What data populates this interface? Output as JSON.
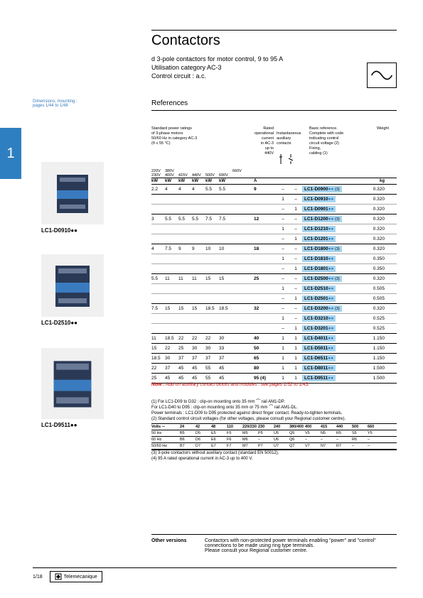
{
  "title": "Contactors",
  "sub1": "d 3-pole contactors for motor control, 9 to 95 A",
  "sub2": "Utilisation category AC-3",
  "sub3": "Control circuit : a.c.",
  "refs": "References",
  "dim_note_1": "Dimensions, mounting :",
  "dim_note_2": "pages 1/44 to 1/48",
  "side_tab": "1",
  "products": [
    {
      "caption": "LC1-D0910●●"
    },
    {
      "caption": "LC1-D2510●●"
    },
    {
      "caption": "LC1-D9511●●"
    }
  ],
  "hdr": {
    "power": "Standard power ratings\nof 3-phase motors\n50/60 Hz in category AC-3\n(θ ≤ 55 °C)",
    "rated": "Rated\noperational\ncurrent\nin AC-3\nup to\n440V",
    "aux": "Instantaneous\nauxiliary\ncontacts",
    "basic": "Basic reference.\nComplete with code\nindicating control\ncircuit voltage (2)\nFixing,\ncabling (1)",
    "weight": "Weight"
  },
  "vhdr": {
    "r1": [
      "220V",
      "380V",
      "",
      "",
      "",
      "",
      "660V"
    ],
    "r2": [
      "230V",
      "400V",
      "415V",
      "440V",
      "500V",
      "690V",
      ""
    ]
  },
  "kwrow": [
    "kW",
    "kW",
    "kW",
    "kW",
    "kW",
    "kW",
    "",
    "A",
    "",
    "",
    "",
    "kg"
  ],
  "rows": [
    {
      "kw": [
        "2.2",
        "4",
        "4",
        "4",
        "5.5",
        "5.5"
      ],
      "c660": "",
      "amp": "9",
      "aux1": "–",
      "aux2": "–",
      "ref": "LC1-D0900",
      "sfx": "(3)",
      "wt": "0.320",
      "major": true
    },
    {
      "kw": [
        "",
        "",
        "",
        "",
        "",
        ""
      ],
      "c660": "",
      "amp": "",
      "aux1": "1",
      "aux2": "–",
      "ref": "LC1-D0910",
      "sfx": "",
      "wt": "0.320"
    },
    {
      "kw": [
        "",
        "",
        "",
        "",
        "",
        ""
      ],
      "c660": "",
      "amp": "",
      "aux1": "–",
      "aux2": "1",
      "ref": "LC1-D0901",
      "sfx": "",
      "wt": "0.320",
      "major": true
    },
    {
      "kw": [
        "3",
        "5.5",
        "5.5",
        "5.5",
        "7.5",
        "7.5"
      ],
      "c660": "",
      "amp": "12",
      "aux1": "–",
      "aux2": "–",
      "ref": "LC1-D1200",
      "sfx": "(3)",
      "wt": "0.320"
    },
    {
      "kw": [
        "",
        "",
        "",
        "",
        "",
        ""
      ],
      "c660": "",
      "amp": "",
      "aux1": "1",
      "aux2": "–",
      "ref": "LC1-D1210",
      "sfx": "",
      "wt": "0.320"
    },
    {
      "kw": [
        "",
        "",
        "",
        "",
        "",
        ""
      ],
      "c660": "",
      "amp": "",
      "aux1": "–",
      "aux2": "1",
      "ref": "LC1-D1201",
      "sfx": "",
      "wt": "0.320",
      "major": true
    },
    {
      "kw": [
        "4",
        "7.5",
        "9",
        "9",
        "10",
        "10"
      ],
      "c660": "",
      "amp": "18",
      "aux1": "–",
      "aux2": "–",
      "ref": "LC1-D1800",
      "sfx": "(3)",
      "wt": "0.320"
    },
    {
      "kw": [
        "",
        "",
        "",
        "",
        "",
        ""
      ],
      "c660": "",
      "amp": "",
      "aux1": "1",
      "aux2": "–",
      "ref": "LC1-D1810",
      "sfx": "",
      "wt": "0.350"
    },
    {
      "kw": [
        "",
        "",
        "",
        "",
        "",
        ""
      ],
      "c660": "",
      "amp": "",
      "aux1": "–",
      "aux2": "1",
      "ref": "LC1-D1801",
      "sfx": "",
      "wt": "0.350",
      "major": true
    },
    {
      "kw": [
        "5.5",
        "11",
        "11",
        "11",
        "15",
        "15"
      ],
      "c660": "",
      "amp": "25",
      "aux1": "–",
      "aux2": "–",
      "ref": "LC1-D2500",
      "sfx": "(3)",
      "wt": "0.320"
    },
    {
      "kw": [
        "",
        "",
        "",
        "",
        "",
        ""
      ],
      "c660": "",
      "amp": "",
      "aux1": "1",
      "aux2": "–",
      "ref": "LC1-D2510",
      "sfx": "",
      "wt": "0.505"
    },
    {
      "kw": [
        "",
        "",
        "",
        "",
        "",
        ""
      ],
      "c660": "",
      "amp": "",
      "aux1": "–",
      "aux2": "1",
      "ref": "LC1-D2501",
      "sfx": "",
      "wt": "0.505",
      "major": true
    },
    {
      "kw": [
        "7.5",
        "15",
        "15",
        "15",
        "18.5",
        "18.5"
      ],
      "c660": "",
      "amp": "32",
      "aux1": "–",
      "aux2": "–",
      "ref": "LC1-D3200",
      "sfx": "(3)",
      "wt": "0.320"
    },
    {
      "kw": [
        "",
        "",
        "",
        "",
        "",
        ""
      ],
      "c660": "",
      "amp": "",
      "aux1": "1",
      "aux2": "–",
      "ref": "LC1-D3210",
      "sfx": "",
      "wt": "0.525"
    },
    {
      "kw": [
        "",
        "",
        "",
        "",
        "",
        ""
      ],
      "c660": "",
      "amp": "",
      "aux1": "–",
      "aux2": "1",
      "ref": "LC1-D3201",
      "sfx": "",
      "wt": "0.525",
      "major": true
    },
    {
      "kw": [
        "11",
        "18.5",
        "22",
        "22",
        "22",
        "30"
      ],
      "c660": "",
      "amp": "40",
      "aux1": "1",
      "aux2": "1",
      "ref": "LC1-D4011",
      "sfx": "",
      "wt": "1.150",
      "major": true
    },
    {
      "kw": [
        "15",
        "22",
        "25",
        "30",
        "30",
        "33"
      ],
      "c660": "",
      "amp": "50",
      "aux1": "1",
      "aux2": "1",
      "ref": "LC1-D5011",
      "sfx": "",
      "wt": "1.150",
      "major": true
    },
    {
      "kw": [
        "18.5",
        "30",
        "37",
        "37",
        "37",
        "37"
      ],
      "c660": "",
      "amp": "65",
      "aux1": "1",
      "aux2": "1",
      "ref": "LC1-D6511",
      "sfx": "",
      "wt": "1.150",
      "major": true
    },
    {
      "kw": [
        "22",
        "37",
        "45",
        "45",
        "55",
        "45"
      ],
      "c660": "",
      "amp": "80",
      "aux1": "1",
      "aux2": "1",
      "ref": "LC1-D8011",
      "sfx": "",
      "wt": "1.500",
      "major": true
    },
    {
      "kw": [
        "25",
        "45",
        "45",
        "45",
        "55",
        "45"
      ],
      "c660": "",
      "amp": "95 (4)",
      "aux1": "1",
      "aux2": "1",
      "ref": "LC1-D9511",
      "sfx": "",
      "wt": "1.500",
      "major": true
    }
  ],
  "note": {
    "em": "Note :",
    "rest": " Add-on auxiliary contact blocks and modules : see pages 1/32 to 1/43."
  },
  "footnotes": [
    "(1) For LC1-D09 to D32 : clip-on mounting onto 35 mm ⌒ rail AM1-DP.",
    "For LC1-D40 to D95 : clip-on mounting onto 35 mm or 75 mm ⌒ rail AM1-DL.",
    "Power terminals : LC1-D09 to D95 protected against direct finger contact. Ready-to-tighten terminals.",
    "(2) Standard control circuit voltages (for other voltages, please consult your Regional customer centre)."
  ],
  "volt_tbl": {
    "header": [
      "Volts ∼",
      "24",
      "42",
      "48",
      "110",
      "220/230",
      "230",
      "240",
      "380/400",
      "400",
      "415",
      "440",
      "500",
      "660"
    ],
    "rows": [
      [
        "50 Hz",
        "B5",
        "D5",
        "E5",
        "F5",
        "M5",
        "P5",
        "U5",
        "Q5",
        "V5",
        "N5",
        "R5",
        "S5",
        "Y5"
      ],
      [
        "60 Hz",
        "B6",
        "D6",
        "E6",
        "F6",
        "M6",
        "–",
        "U6",
        "Q6",
        "–",
        "–",
        "–",
        "R6",
        "–"
      ],
      [
        "50/60 Hz",
        "B7",
        "D7",
        "E7",
        "F7",
        "M7",
        "P7",
        "U7",
        "Q7",
        "V7",
        "N7",
        "R7",
        "–",
        "–"
      ]
    ]
  },
  "footnotes2": [
    "(3) 3-pole contactors without auxiliary contact (standard EN 50012).",
    "(4) 95 A rated operational current in AC-3 up to 400 V."
  ],
  "other": {
    "label": "Other versions",
    "text": "Contactors with non-protected power terminals enabling \"power\" and \"control\" connections to be made using ring type terminals.\nPlease consult your Regional customer centre."
  },
  "footer": {
    "page": "1/18",
    "brand": "Telemecanique"
  }
}
